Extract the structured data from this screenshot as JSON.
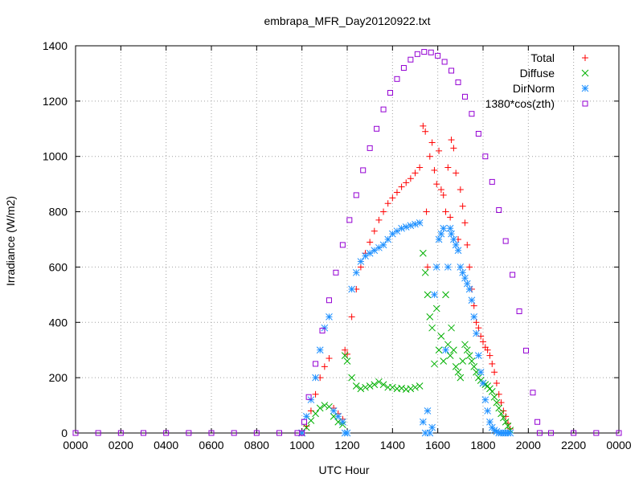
{
  "chart_data": {
    "type": "scatter",
    "title": "embrapa_MFR_Day20120922.txt",
    "xlabel": "UTC Hour",
    "ylabel": "Irradiance (W/m2)",
    "xlim": [
      0,
      24
    ],
    "ylim": [
      0,
      1400
    ],
    "x_ticks": [
      0,
      2,
      4,
      6,
      8,
      10,
      12,
      14,
      16,
      18,
      20,
      22,
      24
    ],
    "x_tick_labels": [
      "0000",
      "0200",
      "0400",
      "0600",
      "0800",
      "1000",
      "1200",
      "1400",
      "1600",
      "1800",
      "2000",
      "2200",
      "0000"
    ],
    "y_ticks": [
      0,
      200,
      400,
      600,
      800,
      1000,
      1200,
      1400
    ],
    "y_tick_labels": [
      "0",
      "200",
      "400",
      "600",
      "800",
      "1000",
      "1200",
      "1400"
    ],
    "grid": true,
    "legend_position": "top-right",
    "series": [
      {
        "name": "Total",
        "marker": "plus",
        "color": "#ff0000",
        "points": [
          [
            10.0,
            0
          ],
          [
            10.2,
            25
          ],
          [
            10.4,
            80
          ],
          [
            10.6,
            140
          ],
          [
            10.8,
            200
          ],
          [
            11.0,
            240
          ],
          [
            11.2,
            270
          ],
          [
            11.4,
            90
          ],
          [
            11.6,
            70
          ],
          [
            11.8,
            50
          ],
          [
            11.9,
            300
          ],
          [
            12.0,
            285
          ],
          [
            12.2,
            420
          ],
          [
            12.4,
            520
          ],
          [
            12.6,
            600
          ],
          [
            12.8,
            650
          ],
          [
            13.0,
            690
          ],
          [
            13.2,
            730
          ],
          [
            13.4,
            770
          ],
          [
            13.6,
            800
          ],
          [
            13.8,
            830
          ],
          [
            14.0,
            850
          ],
          [
            14.2,
            870
          ],
          [
            14.4,
            890
          ],
          [
            14.6,
            905
          ],
          [
            14.8,
            920
          ],
          [
            15.0,
            940
          ],
          [
            15.2,
            960
          ],
          [
            15.35,
            1110
          ],
          [
            15.45,
            1090
          ],
          [
            15.5,
            800
          ],
          [
            15.55,
            600
          ],
          [
            15.65,
            1000
          ],
          [
            15.75,
            1050
          ],
          [
            15.85,
            950
          ],
          [
            15.95,
            900
          ],
          [
            16.05,
            1020
          ],
          [
            16.15,
            880
          ],
          [
            16.25,
            860
          ],
          [
            16.35,
            800
          ],
          [
            16.45,
            960
          ],
          [
            16.55,
            780
          ],
          [
            16.6,
            1060
          ],
          [
            16.7,
            1030
          ],
          [
            16.8,
            940
          ],
          [
            16.9,
            700
          ],
          [
            17.0,
            880
          ],
          [
            17.1,
            820
          ],
          [
            17.2,
            760
          ],
          [
            17.3,
            680
          ],
          [
            17.4,
            600
          ],
          [
            17.5,
            520
          ],
          [
            17.6,
            460
          ],
          [
            17.7,
            400
          ],
          [
            17.8,
            380
          ],
          [
            17.9,
            350
          ],
          [
            18.0,
            330
          ],
          [
            18.1,
            310
          ],
          [
            18.2,
            300
          ],
          [
            18.3,
            280
          ],
          [
            18.4,
            250
          ],
          [
            18.5,
            220
          ],
          [
            18.6,
            180
          ],
          [
            18.7,
            140
          ],
          [
            18.8,
            110
          ],
          [
            18.9,
            80
          ],
          [
            19.0,
            60
          ],
          [
            19.1,
            35
          ],
          [
            19.2,
            15
          ]
        ]
      },
      {
        "name": "Diffuse",
        "marker": "cross",
        "color": "#00b000",
        "points": [
          [
            10.0,
            0
          ],
          [
            10.2,
            20
          ],
          [
            10.4,
            45
          ],
          [
            10.6,
            70
          ],
          [
            10.8,
            90
          ],
          [
            11.0,
            100
          ],
          [
            11.2,
            95
          ],
          [
            11.4,
            60
          ],
          [
            11.6,
            40
          ],
          [
            11.8,
            30
          ],
          [
            11.9,
            280
          ],
          [
            12.0,
            260
          ],
          [
            12.2,
            200
          ],
          [
            12.4,
            170
          ],
          [
            12.6,
            160
          ],
          [
            12.8,
            165
          ],
          [
            13.0,
            170
          ],
          [
            13.2,
            175
          ],
          [
            13.4,
            185
          ],
          [
            13.6,
            175
          ],
          [
            13.8,
            165
          ],
          [
            14.0,
            165
          ],
          [
            14.2,
            160
          ],
          [
            14.4,
            162
          ],
          [
            14.6,
            158
          ],
          [
            14.8,
            160
          ],
          [
            15.0,
            165
          ],
          [
            15.2,
            170
          ],
          [
            15.35,
            650
          ],
          [
            15.45,
            580
          ],
          [
            15.55,
            500
          ],
          [
            15.65,
            420
          ],
          [
            15.75,
            380
          ],
          [
            15.85,
            250
          ],
          [
            15.95,
            450
          ],
          [
            16.05,
            300
          ],
          [
            16.15,
            350
          ],
          [
            16.25,
            260
          ],
          [
            16.35,
            500
          ],
          [
            16.45,
            320
          ],
          [
            16.55,
            280
          ],
          [
            16.6,
            380
          ],
          [
            16.7,
            300
          ],
          [
            16.8,
            240
          ],
          [
            16.9,
            220
          ],
          [
            17.0,
            200
          ],
          [
            17.1,
            260
          ],
          [
            17.2,
            320
          ],
          [
            17.3,
            300
          ],
          [
            17.4,
            280
          ],
          [
            17.5,
            260
          ],
          [
            17.6,
            240
          ],
          [
            17.7,
            220
          ],
          [
            17.8,
            200
          ],
          [
            17.9,
            190
          ],
          [
            18.0,
            180
          ],
          [
            18.1,
            175
          ],
          [
            18.2,
            170
          ],
          [
            18.3,
            160
          ],
          [
            18.4,
            150
          ],
          [
            18.5,
            130
          ],
          [
            18.6,
            110
          ],
          [
            18.7,
            90
          ],
          [
            18.8,
            70
          ],
          [
            18.9,
            55
          ],
          [
            19.0,
            40
          ],
          [
            19.1,
            25
          ],
          [
            19.2,
            10
          ]
        ]
      },
      {
        "name": "DirNorm",
        "marker": "star",
        "color": "#1e90ff",
        "points": [
          [
            10.0,
            0
          ],
          [
            10.2,
            60
          ],
          [
            10.4,
            120
          ],
          [
            10.6,
            200
          ],
          [
            10.8,
            300
          ],
          [
            11.0,
            380
          ],
          [
            11.2,
            420
          ],
          [
            11.4,
            80
          ],
          [
            11.6,
            60
          ],
          [
            11.8,
            40
          ],
          [
            11.9,
            0
          ],
          [
            12.0,
            0
          ],
          [
            12.2,
            520
          ],
          [
            12.4,
            580
          ],
          [
            12.6,
            620
          ],
          [
            12.8,
            640
          ],
          [
            13.0,
            650
          ],
          [
            13.2,
            660
          ],
          [
            13.4,
            670
          ],
          [
            13.6,
            680
          ],
          [
            13.8,
            700
          ],
          [
            14.0,
            720
          ],
          [
            14.2,
            730
          ],
          [
            14.4,
            740
          ],
          [
            14.6,
            745
          ],
          [
            14.8,
            750
          ],
          [
            15.0,
            755
          ],
          [
            15.2,
            760
          ],
          [
            15.35,
            40
          ],
          [
            15.45,
            0
          ],
          [
            15.55,
            80
          ],
          [
            15.65,
            0
          ],
          [
            15.75,
            20
          ],
          [
            15.85,
            500
          ],
          [
            15.95,
            600
          ],
          [
            16.05,
            700
          ],
          [
            16.15,
            720
          ],
          [
            16.25,
            740
          ],
          [
            16.35,
            300
          ],
          [
            16.45,
            600
          ],
          [
            16.55,
            740
          ],
          [
            16.6,
            720
          ],
          [
            16.7,
            700
          ],
          [
            16.8,
            680
          ],
          [
            16.9,
            660
          ],
          [
            17.0,
            600
          ],
          [
            17.1,
            580
          ],
          [
            17.2,
            560
          ],
          [
            17.3,
            540
          ],
          [
            17.4,
            520
          ],
          [
            17.5,
            480
          ],
          [
            17.6,
            420
          ],
          [
            17.7,
            360
          ],
          [
            17.8,
            280
          ],
          [
            17.9,
            220
          ],
          [
            18.0,
            180
          ],
          [
            18.1,
            120
          ],
          [
            18.2,
            80
          ],
          [
            18.3,
            40
          ],
          [
            18.4,
            20
          ],
          [
            18.5,
            10
          ],
          [
            18.6,
            5
          ],
          [
            18.7,
            0
          ],
          [
            18.8,
            0
          ],
          [
            18.9,
            0
          ],
          [
            19.0,
            0
          ],
          [
            19.1,
            0
          ],
          [
            19.2,
            0
          ]
        ]
      },
      {
        "name": "1380*cos(zth)",
        "marker": "square",
        "color": "#9400d3",
        "points": [
          [
            0,
            0
          ],
          [
            1,
            0
          ],
          [
            2,
            0
          ],
          [
            3,
            0
          ],
          [
            4,
            0
          ],
          [
            5,
            0
          ],
          [
            6,
            0
          ],
          [
            7,
            0
          ],
          [
            8,
            0
          ],
          [
            9,
            0
          ],
          [
            9.8,
            0
          ],
          [
            10.0,
            0
          ],
          [
            10.1,
            40
          ],
          [
            10.3,
            130
          ],
          [
            10.6,
            250
          ],
          [
            10.9,
            370
          ],
          [
            11.2,
            480
          ],
          [
            11.5,
            580
          ],
          [
            11.8,
            680
          ],
          [
            12.1,
            770
          ],
          [
            12.4,
            860
          ],
          [
            12.7,
            950
          ],
          [
            13.0,
            1030
          ],
          [
            13.3,
            1100
          ],
          [
            13.6,
            1170
          ],
          [
            13.9,
            1230
          ],
          [
            14.2,
            1280
          ],
          [
            14.5,
            1320
          ],
          [
            14.8,
            1350
          ],
          [
            15.1,
            1370
          ],
          [
            15.4,
            1378
          ],
          [
            15.7,
            1376
          ],
          [
            16.0,
            1364
          ],
          [
            16.3,
            1342
          ],
          [
            16.6,
            1310
          ],
          [
            16.9,
            1268
          ],
          [
            17.2,
            1216
          ],
          [
            17.5,
            1154
          ],
          [
            17.8,
            1082
          ],
          [
            18.1,
            1000
          ],
          [
            18.4,
            908
          ],
          [
            18.7,
            806
          ],
          [
            19.0,
            694
          ],
          [
            19.3,
            572
          ],
          [
            19.6,
            440
          ],
          [
            19.9,
            298
          ],
          [
            20.2,
            146
          ],
          [
            20.4,
            40
          ],
          [
            20.5,
            0
          ],
          [
            21,
            0
          ],
          [
            22,
            0
          ],
          [
            23,
            0
          ],
          [
            24,
            0
          ]
        ]
      }
    ]
  }
}
